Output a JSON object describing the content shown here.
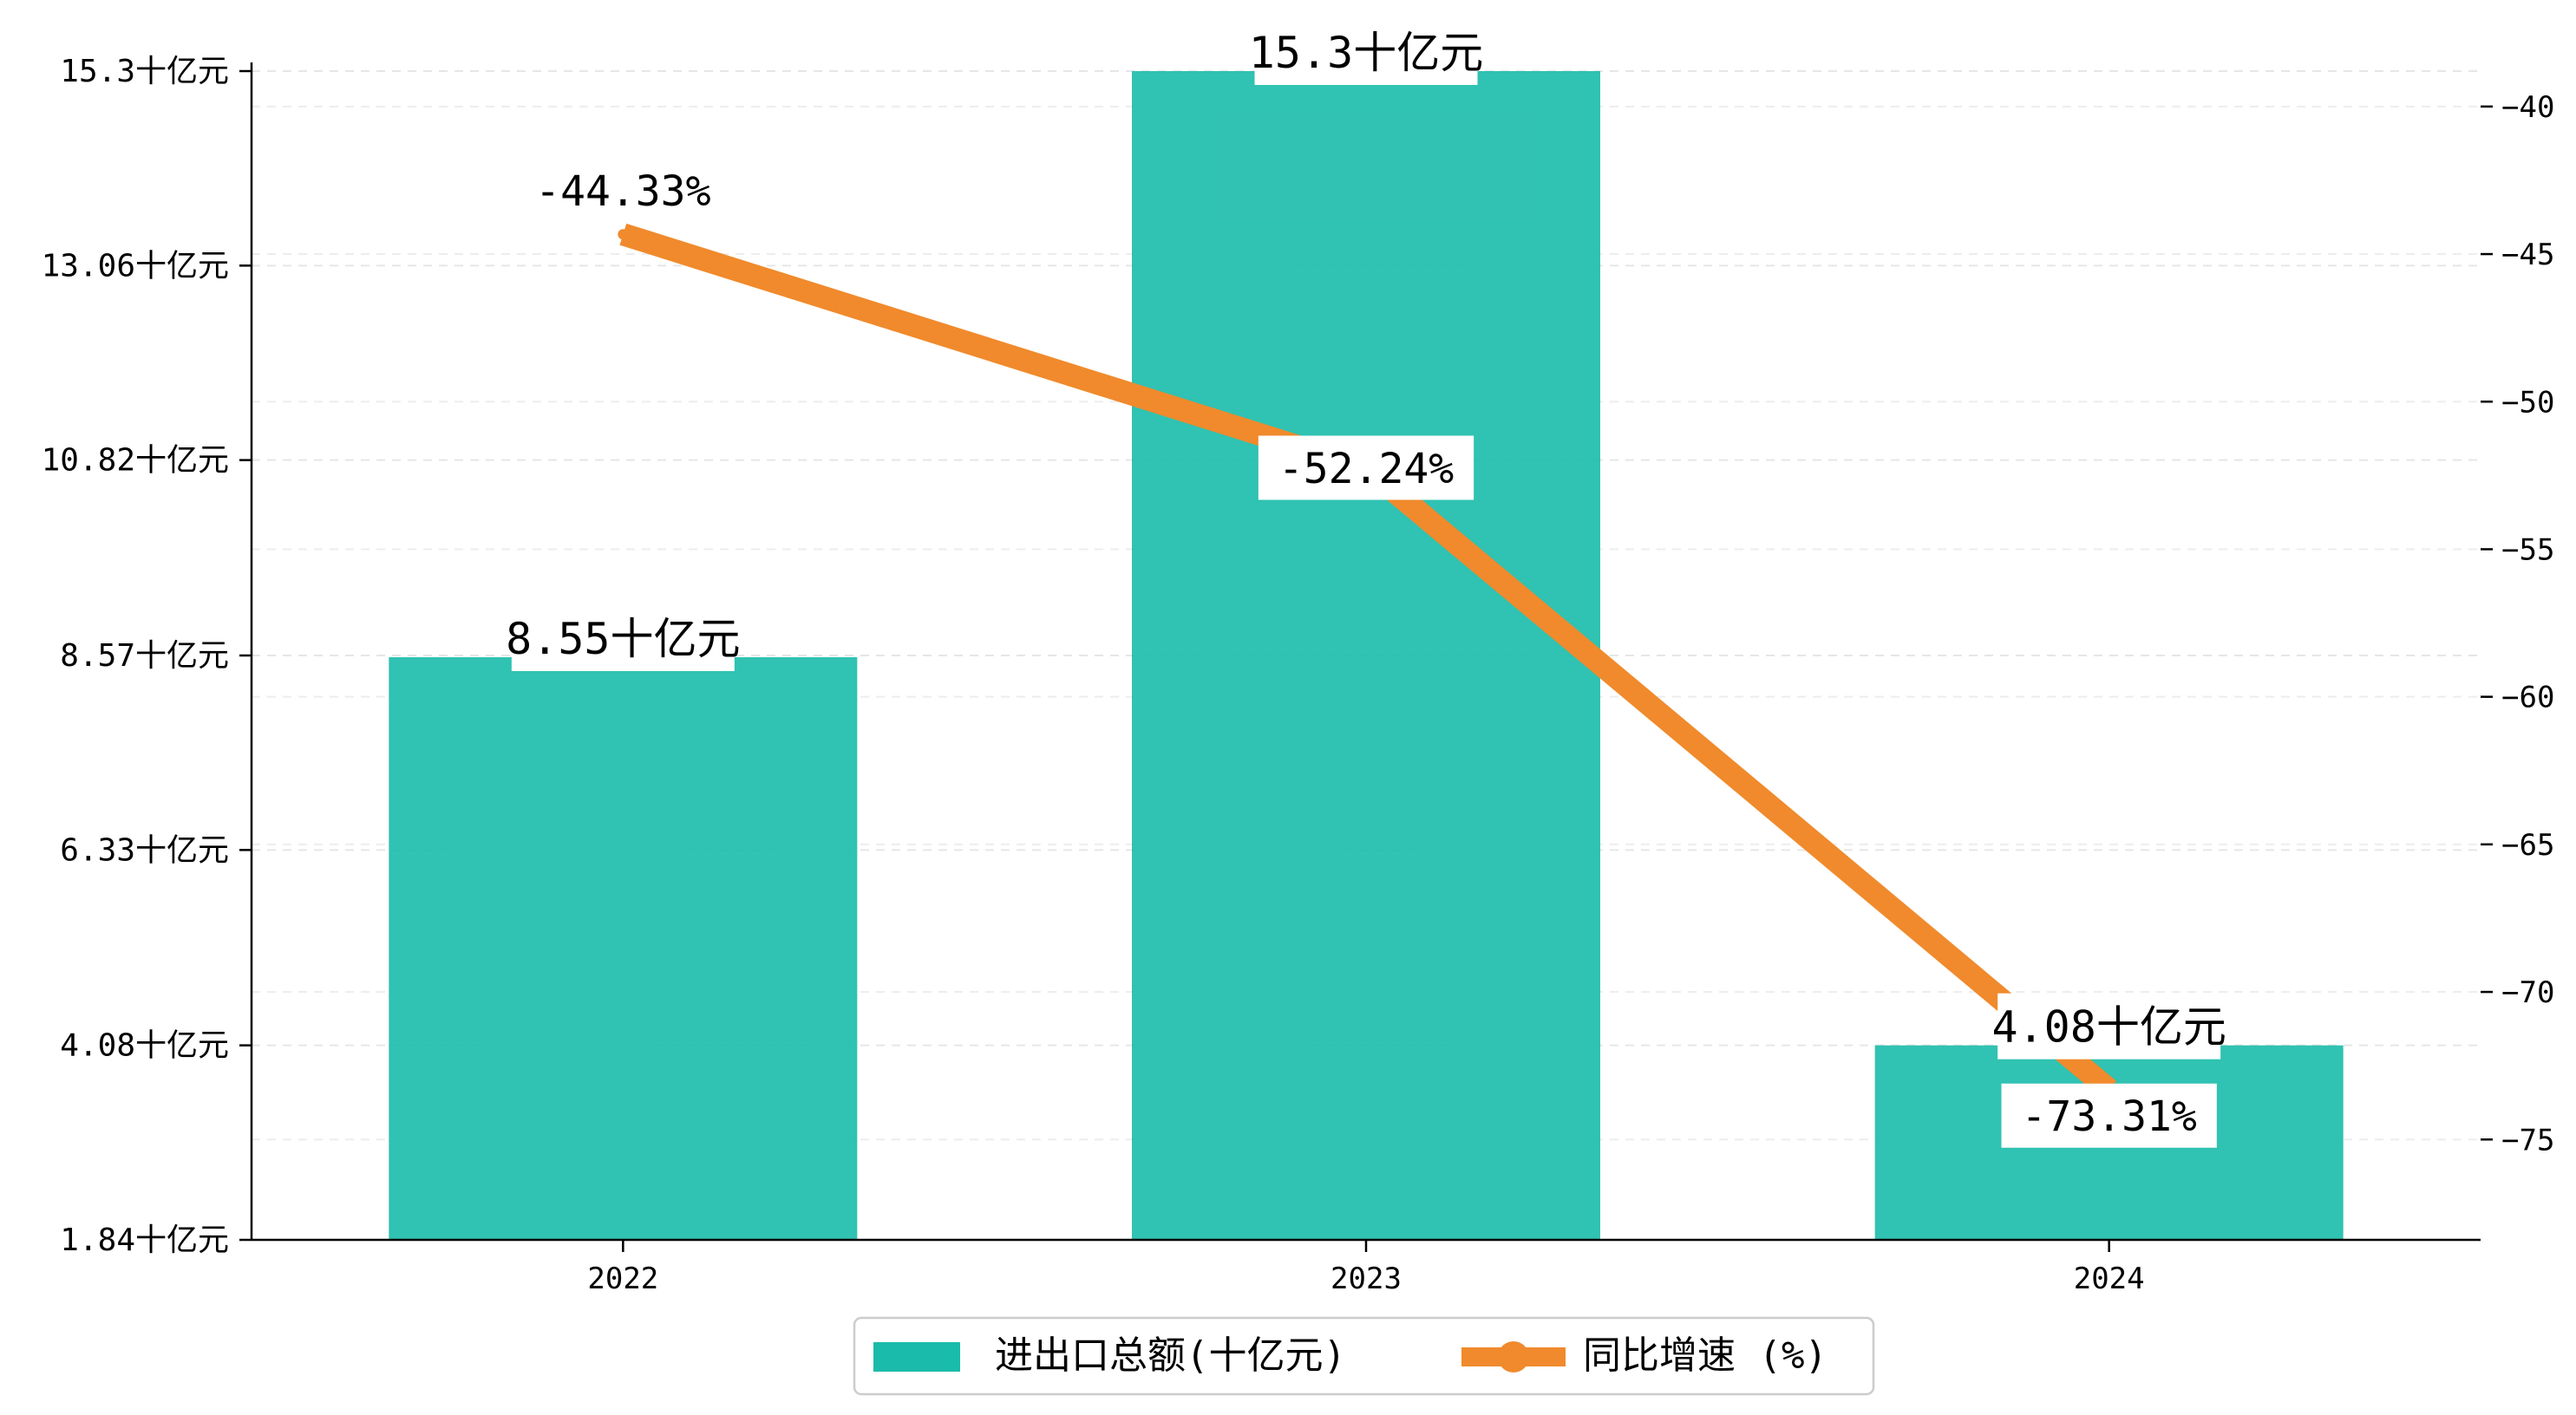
{
  "chart_data": {
    "type": "bar",
    "categories": [
      "2022",
      "2023",
      "2024"
    ],
    "series": [
      {
        "name": "进出口总额(十亿元)",
        "type": "bar",
        "axis": "left",
        "values": [
          8.55,
          15.3,
          4.08
        ],
        "value_labels": [
          "8.55十亿元",
          "15.3十亿元",
          "4.08十亿元"
        ],
        "color": "#1ABBAA"
      },
      {
        "name": "同比增速 (%)",
        "type": "line",
        "axis": "right",
        "values": [
          -44.33,
          -52.24,
          -73.31
        ],
        "value_labels": [
          "-44.33%",
          "-52.24%",
          "-73.31%"
        ],
        "color": "#F08A2C"
      }
    ],
    "y_left": {
      "range": [
        1.84,
        15.3
      ],
      "ticks": [
        1.84,
        4.08,
        6.33,
        8.57,
        10.82,
        13.06,
        15.3
      ],
      "tick_labels": [
        "1.84十亿元",
        "4.08十亿元",
        "6.33十亿元",
        "8.57十亿元",
        "10.82十亿元",
        "13.06十亿元",
        "15.3十亿元"
      ]
    },
    "y_right": {
      "range": [
        -78.4,
        -38.8
      ],
      "ticks": [
        -40,
        -45,
        -50,
        -55,
        -60,
        -65,
        -70,
        -75
      ],
      "tick_labels": [
        "−40",
        "−45",
        "−50",
        "−55",
        "−60",
        "−65",
        "−70",
        "−75"
      ]
    },
    "grid": true,
    "legend_position": "bottom-center",
    "title": "",
    "xlabel": "",
    "ylabel": ""
  }
}
